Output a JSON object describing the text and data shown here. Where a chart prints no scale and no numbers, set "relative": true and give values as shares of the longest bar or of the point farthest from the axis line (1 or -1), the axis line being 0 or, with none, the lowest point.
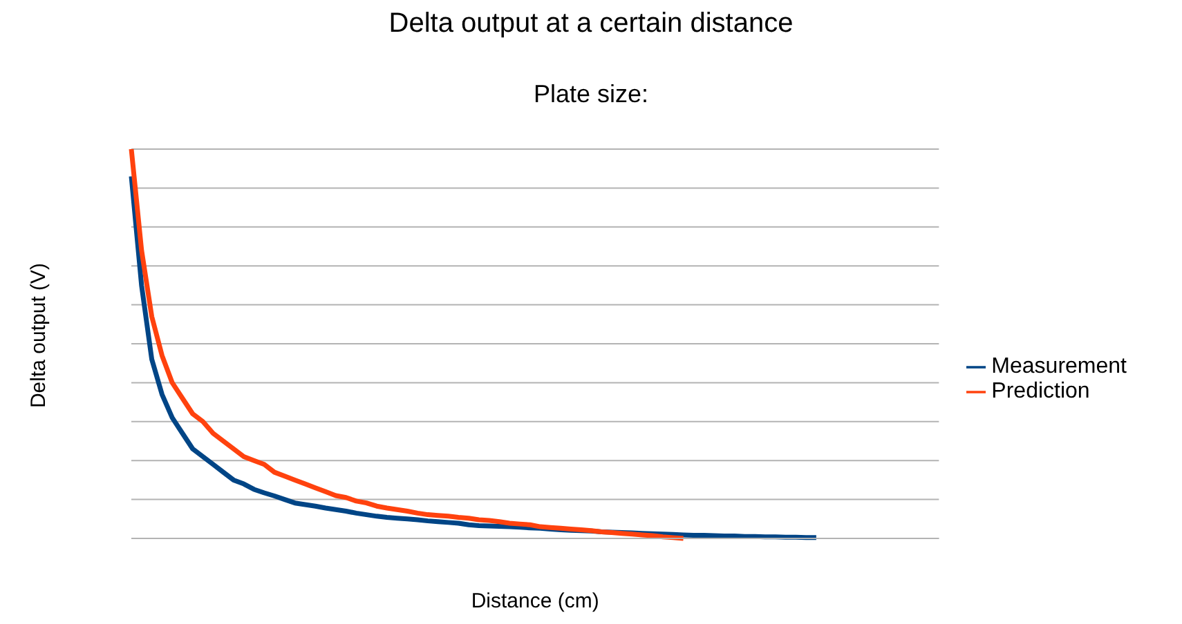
{
  "chart_data": {
    "type": "line",
    "title": "Delta output at a certain distance",
    "subtitle": "Plate size:",
    "xlabel": "Distance (cm)",
    "ylabel": "Delta output (V)",
    "relative": true,
    "grid": "y",
    "legend": "right",
    "marker": "none",
    "line_style": "solid",
    "categories": [
      null,
      null,
      null,
      null,
      null,
      null,
      null,
      null,
      null,
      null,
      null,
      null,
      null,
      null,
      null,
      null,
      null,
      null,
      null,
      null,
      null,
      null,
      null,
      null,
      null,
      null,
      null,
      null,
      null,
      null,
      null,
      null,
      null,
      null,
      null,
      null,
      null,
      null,
      null,
      null,
      null,
      null,
      null,
      null,
      null,
      null,
      null,
      null,
      null,
      null,
      null,
      null,
      null,
      null,
      null,
      null,
      null,
      null,
      null,
      null,
      null,
      null,
      null,
      null,
      null,
      null,
      null,
      null,
      null,
      null,
      null,
      null,
      null,
      null,
      null,
      null,
      null,
      null,
      null,
      null
    ],
    "series": [
      {
        "name": "Measurement",
        "color": "#004586",
        "values": [
          0.93,
          0.65,
          0.46,
          0.37,
          0.31,
          0.27,
          0.23,
          0.21,
          0.19,
          0.17,
          0.15,
          0.14,
          0.126,
          0.117,
          0.109,
          0.1,
          0.091,
          0.087,
          0.083,
          0.078,
          0.074,
          0.07,
          0.065,
          0.061,
          0.057,
          0.054,
          0.052,
          0.05,
          0.048,
          0.045,
          0.043,
          0.041,
          0.039,
          0.035,
          0.033,
          0.032,
          0.031,
          0.03,
          0.029,
          0.027,
          0.026,
          0.024,
          0.022,
          0.021,
          0.02,
          0.019,
          0.017,
          0.016,
          0.015,
          0.014,
          0.013,
          0.012,
          0.011,
          0.01,
          0.009,
          0.008,
          0.008,
          0.007,
          0.006,
          0.006,
          0.005,
          0.005,
          0.004,
          0.004,
          0.003,
          0.003,
          0.002,
          0.002,
          null,
          null,
          null,
          null,
          null,
          null,
          null,
          null,
          null,
          null,
          null,
          null
        ]
      },
      {
        "name": "Prediction",
        "color": "#ff420e",
        "values": [
          1,
          0.74,
          0.57,
          0.47,
          0.4,
          0.36,
          0.32,
          0.3,
          0.27,
          0.25,
          0.23,
          0.21,
          0.2,
          0.19,
          0.17,
          0.16,
          0.15,
          0.14,
          0.13,
          0.12,
          0.11,
          0.105,
          0.096,
          0.091,
          0.083,
          0.078,
          0.074,
          0.07,
          0.065,
          0.061,
          0.059,
          0.057,
          0.054,
          0.052,
          0.048,
          0.046,
          0.043,
          0.039,
          0.037,
          0.035,
          0.03,
          0.028,
          0.026,
          0.024,
          0.022,
          0.02,
          0.017,
          0.015,
          0.013,
          0.011,
          0.009,
          0.007,
          0.004,
          0.002,
          0,
          null,
          null,
          null,
          null,
          null,
          null,
          null,
          null,
          null,
          null,
          null,
          null,
          null,
          null,
          null,
          null,
          null,
          null,
          null,
          null,
          null,
          null,
          null,
          null,
          null
        ]
      }
    ]
  }
}
